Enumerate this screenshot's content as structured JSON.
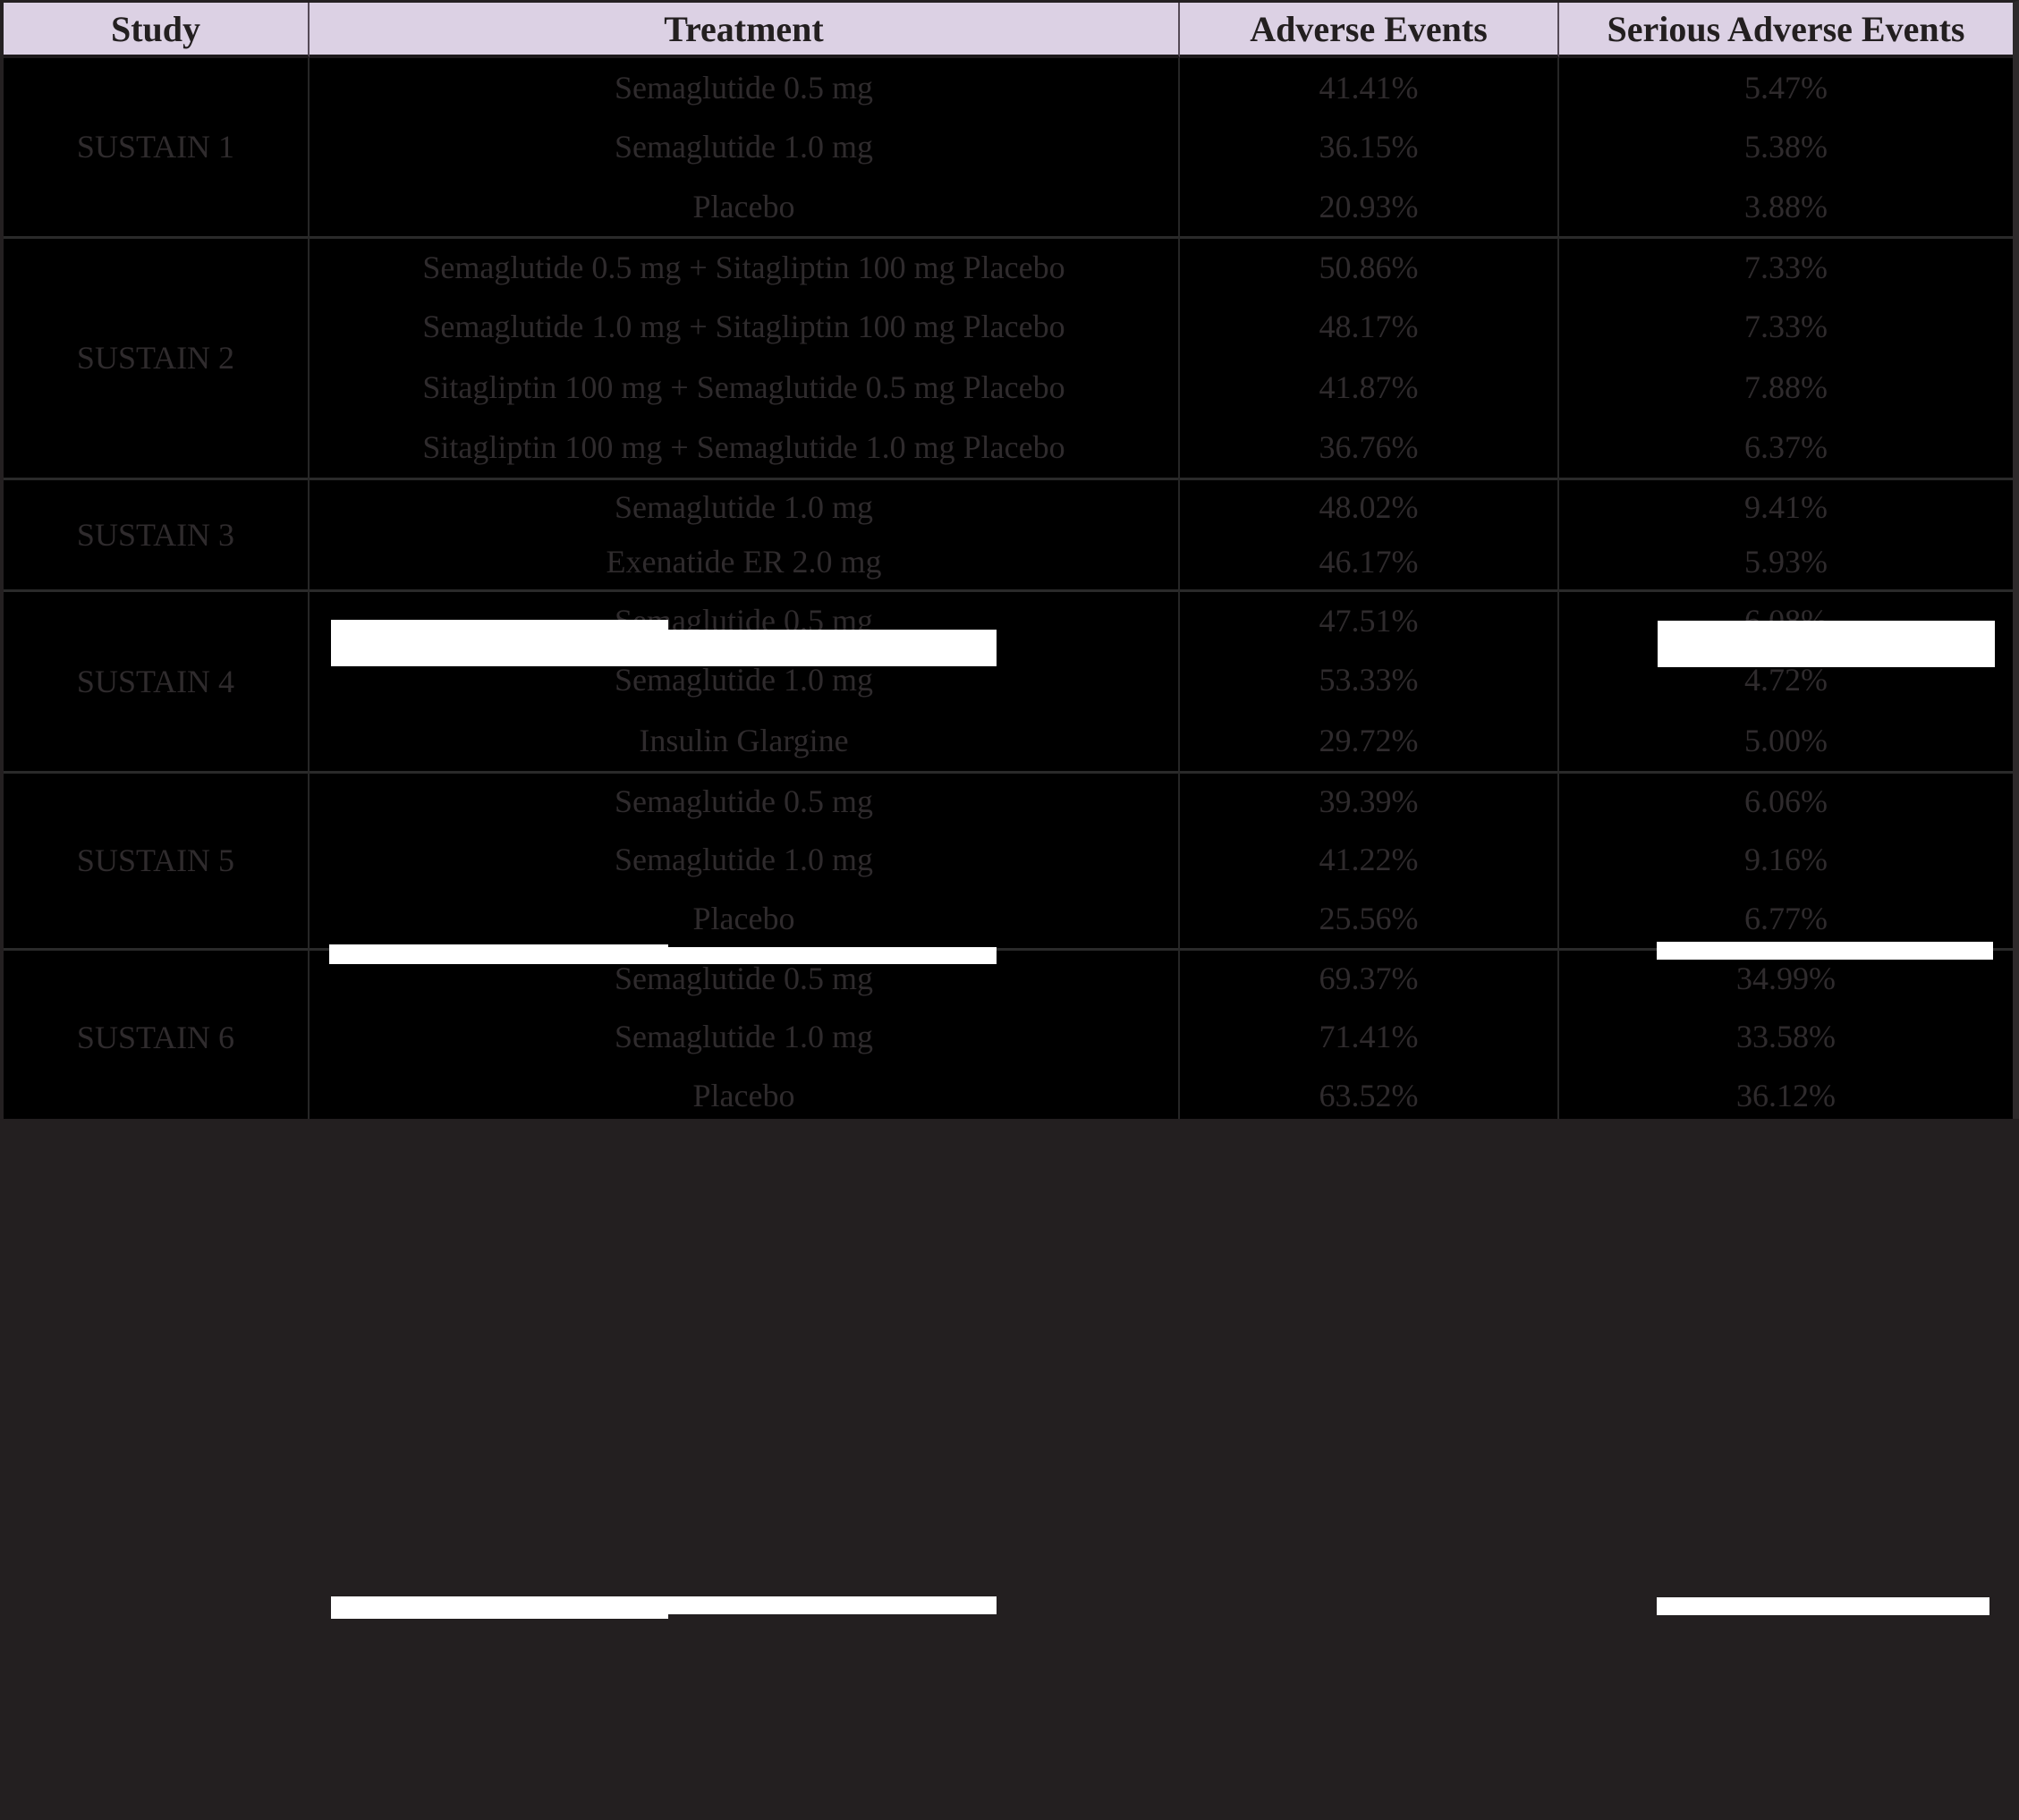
{
  "table": {
    "headers": {
      "study": "Study",
      "treatment": "Treatment",
      "adverse": "Adverse Events",
      "serious": "Serious Adverse Events"
    },
    "studies": [
      {
        "name": "SUSTAIN 1",
        "rows": [
          {
            "treatment": "Semaglutide 0.5 mg",
            "ae": "41.41%",
            "sae": "5.47%"
          },
          {
            "treatment": "Semaglutide 1.0 mg",
            "ae": "36.15%",
            "sae": "5.38%"
          },
          {
            "treatment": "Placebo",
            "ae": "20.93%",
            "sae": "3.88%"
          }
        ]
      },
      {
        "name": "SUSTAIN 2",
        "rows": [
          {
            "treatment": "Semaglutide 0.5 mg + Sitagliptin 100 mg Placebo",
            "ae": "50.86%",
            "sae": "7.33%"
          },
          {
            "treatment": "Semaglutide 1.0 mg + Sitagliptin 100 mg Placebo",
            "ae": "48.17%",
            "sae": "7.33%"
          },
          {
            "treatment": "Sitagliptin 100 mg + Semaglutide 0.5 mg Placebo",
            "ae": "41.87%",
            "sae": "7.88%"
          },
          {
            "treatment": "Sitagliptin 100 mg + Semaglutide 1.0 mg Placebo",
            "ae": "36.76%",
            "sae": "6.37%"
          }
        ]
      },
      {
        "name": "SUSTAIN 3",
        "rows": [
          {
            "treatment": "Semaglutide 1.0 mg",
            "ae": "48.02%",
            "sae": "9.41%"
          },
          {
            "treatment": "Exenatide ER 2.0 mg",
            "ae": "46.17%",
            "sae": "5.93%"
          }
        ]
      },
      {
        "name": "SUSTAIN 4",
        "rows": [
          {
            "treatment": "Semaglutide 0.5 mg",
            "ae": "47.51%",
            "sae": "6.08%"
          },
          {
            "treatment": "Semaglutide 1.0 mg",
            "ae": "53.33%",
            "sae": "4.72%"
          },
          {
            "treatment": "Insulin Glargine",
            "ae": "29.72%",
            "sae": "5.00%"
          }
        ]
      },
      {
        "name": "SUSTAIN 5",
        "rows": [
          {
            "treatment": "Semaglutide 0.5 mg",
            "ae": "39.39%",
            "sae": "6.06%"
          },
          {
            "treatment": "Semaglutide 1.0 mg",
            "ae": "41.22%",
            "sae": "9.16%"
          },
          {
            "treatment": "Placebo",
            "ae": "25.56%",
            "sae": "6.77%"
          }
        ]
      },
      {
        "name": "SUSTAIN 6",
        "rows": [
          {
            "treatment": "Semaglutide 0.5 mg",
            "ae": "69.37%",
            "sae": "34.99%"
          },
          {
            "treatment": "Semaglutide 1.0 mg",
            "ae": "71.41%",
            "sae": "33.58%"
          },
          {
            "treatment": "Placebo",
            "ae": "63.52%",
            "sae": "36.12%"
          }
        ]
      }
    ]
  },
  "colors": {
    "header_background": "#dcd1e4",
    "header_text": "#231f20",
    "table_background": "#000000",
    "body_text": "#2f2b2d",
    "gridline": "#2a2a2a",
    "footer_background": "#231f20",
    "redaction_bar": "#ffffff"
  }
}
